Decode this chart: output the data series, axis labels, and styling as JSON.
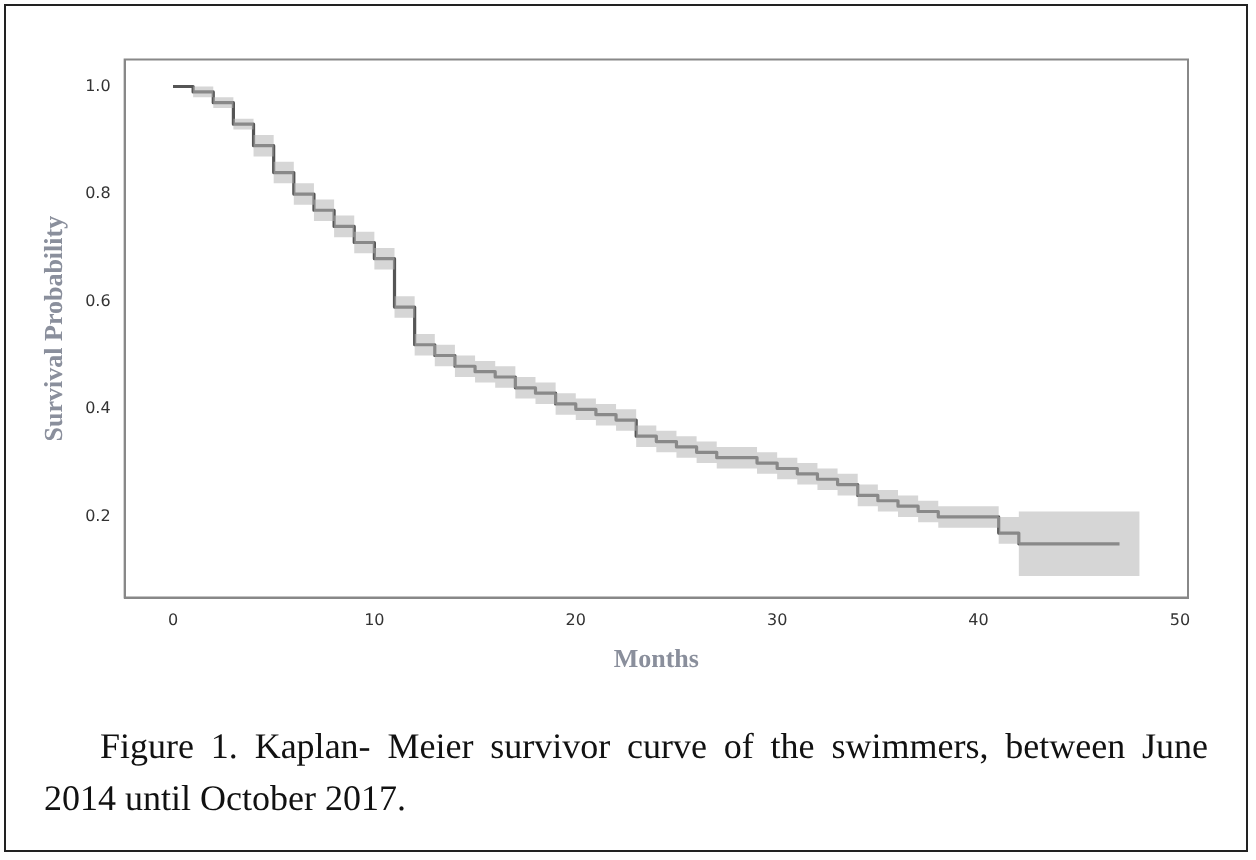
{
  "chart_data": {
    "type": "step",
    "xlabel": "Months",
    "ylabel": "Survival Probability",
    "annotations": [
      "Figure 1. Kaplan- Meier survivor curve of the swimmers, between June 2014 until October 2017."
    ],
    "xlim": [
      -2.4,
      50.4
    ],
    "ylim": [
      0.05,
      1.05
    ],
    "xticks": [
      0,
      10,
      20,
      30,
      40,
      50
    ],
    "yticks": [
      {
        "value": 0.2,
        "label": "0.2"
      },
      {
        "value": 0.4,
        "label": "0.4"
      },
      {
        "value": 0.6,
        "label": "0.6"
      },
      {
        "value": 0.8,
        "label": "0.8"
      },
      {
        "value": 1,
        "label": "1.0"
      }
    ],
    "grid": false,
    "legend": false,
    "series": [
      {
        "color": "#555555",
        "x": [
          0,
          1,
          2,
          3,
          4,
          5,
          6,
          7,
          8,
          9,
          10,
          11,
          12,
          13,
          14,
          15,
          16,
          17,
          18,
          19,
          20,
          21,
          22,
          23,
          24,
          25,
          26,
          27,
          28,
          29,
          30,
          31,
          32,
          33,
          34,
          35,
          36,
          37,
          38,
          39,
          41,
          42,
          47,
          48
        ],
        "values": [
          1.0,
          0.99,
          0.97,
          0.93,
          0.89,
          0.84,
          0.8,
          0.77,
          0.74,
          0.71,
          0.68,
          0.59,
          0.52,
          0.5,
          0.48,
          0.47,
          0.46,
          0.44,
          0.43,
          0.41,
          0.4,
          0.39,
          0.38,
          0.35,
          0.34,
          0.33,
          0.32,
          0.31,
          0.31,
          0.3,
          0.29,
          0.28,
          0.27,
          0.26,
          0.24,
          0.23,
          0.22,
          0.21,
          0.2,
          0.2,
          0.17,
          0.15,
          0.15,
          null
        ],
        "lower": [
          1.0,
          0.98,
          0.96,
          0.92,
          0.87,
          0.82,
          0.78,
          0.75,
          0.72,
          0.69,
          0.66,
          0.57,
          0.5,
          0.48,
          0.46,
          0.45,
          0.44,
          0.42,
          0.41,
          0.39,
          0.38,
          0.37,
          0.36,
          0.33,
          0.32,
          0.31,
          0.3,
          0.29,
          0.29,
          0.28,
          0.27,
          0.26,
          0.25,
          0.24,
          0.22,
          0.21,
          0.2,
          0.19,
          0.18,
          0.18,
          0.15,
          0.09,
          0.09,
          0.09
        ],
        "upper": [
          1.0,
          1.0,
          0.98,
          0.94,
          0.91,
          0.86,
          0.82,
          0.79,
          0.76,
          0.73,
          0.7,
          0.61,
          0.54,
          0.52,
          0.5,
          0.49,
          0.48,
          0.46,
          0.45,
          0.43,
          0.42,
          0.41,
          0.4,
          0.37,
          0.36,
          0.35,
          0.34,
          0.33,
          0.33,
          0.32,
          0.31,
          0.3,
          0.29,
          0.28,
          0.26,
          0.25,
          0.24,
          0.23,
          0.22,
          0.22,
          0.2,
          0.21,
          0.21,
          0.21
        ]
      }
    ]
  }
}
